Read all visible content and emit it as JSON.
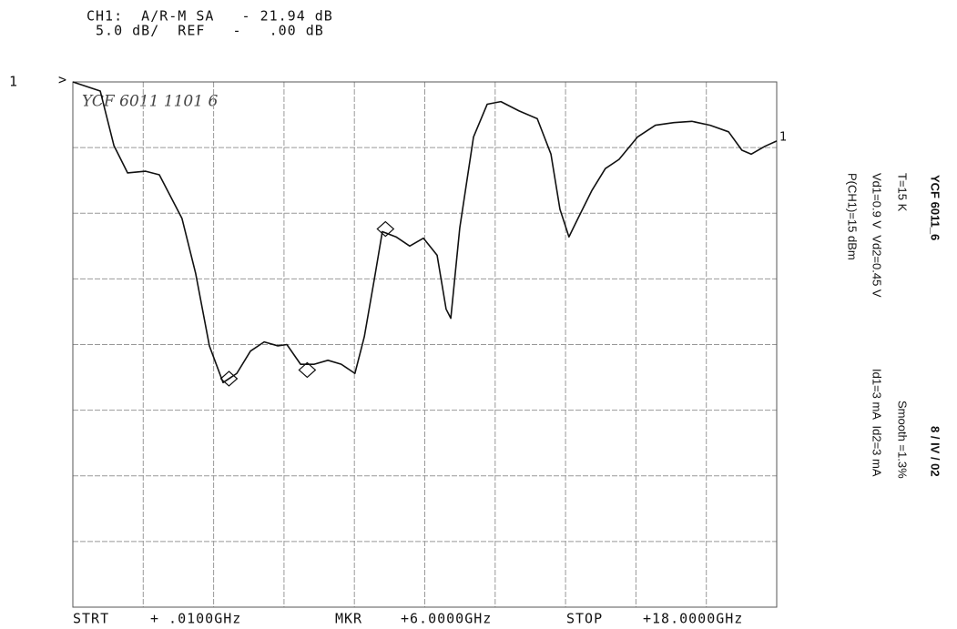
{
  "chart_data": {
    "type": "line",
    "header": [
      "CH1:  A/R-M SA   - 21.94 dB",
      " 5.0 dB/  REF   -   .00 dB"
    ],
    "channel_label": "1",
    "ref_marker": ">",
    "trace_label": "1",
    "annotation": "YCF 6011 1101 6",
    "footer": [
      "STRT",
      "+ .0100GHz",
      "MKR",
      "+6.0000GHz",
      "STOP",
      "+18.0000GHz"
    ],
    "side_texts": [
      "YCF 6011_6",
      "8 / IV / 02",
      "T=15 K",
      "Smooth =1.3%",
      "Vd1=0.9 V  Vd2=0.45 V",
      "Id1=3 mA  Id2=3 mA",
      "P(CH1)=15 dBm"
    ],
    "xlim": [
      0.01,
      18
    ],
    "ylim": [
      -40,
      0
    ],
    "xticks": [
      0.01,
      1.809,
      3.608,
      5.407,
      7.206,
      9.005,
      10.804,
      12.603,
      14.402,
      16.201,
      18
    ],
    "yticks": [
      0,
      -5,
      -10,
      -15,
      -20,
      -25,
      -30,
      -35,
      -40
    ],
    "grid": true,
    "x": [
      0.01,
      0.71,
      1.06,
      1.41,
      1.87,
      2.22,
      2.8,
      3.15,
      3.5,
      3.85,
      4.2,
      4.55,
      4.9,
      5.25,
      5.48,
      5.83,
      6.18,
      6.53,
      6.87,
      7.22,
      7.46,
      7.74,
      7.92,
      8.27,
      8.62,
      8.97,
      9.32,
      9.55,
      9.67,
      9.9,
      10.25,
      10.6,
      10.95,
      11.41,
      11.88,
      12.23,
      12.46,
      12.69,
      12.92,
      13.27,
      13.62,
      13.97,
      14.44,
      14.9,
      15.37,
      15.83,
      16.3,
      16.77,
      17.11,
      17.35,
      17.7,
      18
    ],
    "series": [
      {
        "name": "CH1",
        "color": "#111111",
        "values": [
          0,
          -0.69,
          -4.85,
          -6.93,
          -6.8,
          -7.07,
          -10.4,
          -14.6,
          -20.1,
          -22.9,
          -22.2,
          -20.5,
          -19.8,
          -20.1,
          -20,
          -21.5,
          -21.5,
          -21.2,
          -21.5,
          -22.2,
          -19.4,
          -14.6,
          -11.4,
          -11.8,
          -12.5,
          -11.9,
          -13.2,
          -17.3,
          -18,
          -11.1,
          -4.2,
          -1.7,
          -1.5,
          -2.2,
          -2.8,
          -5.5,
          -9.7,
          -11.8,
          -10.4,
          -8.3,
          -6.6,
          -5.9,
          -4.2,
          -3.3,
          -3.1,
          -3,
          -3.3,
          -3.8,
          -5.2,
          -5.5,
          -4.9,
          -4.5
        ]
      }
    ],
    "markers": {
      "x": [
        4.0,
        6.0,
        8.0
      ],
      "values": [
        -22.6,
        -21.94,
        -11.2
      ]
    }
  }
}
